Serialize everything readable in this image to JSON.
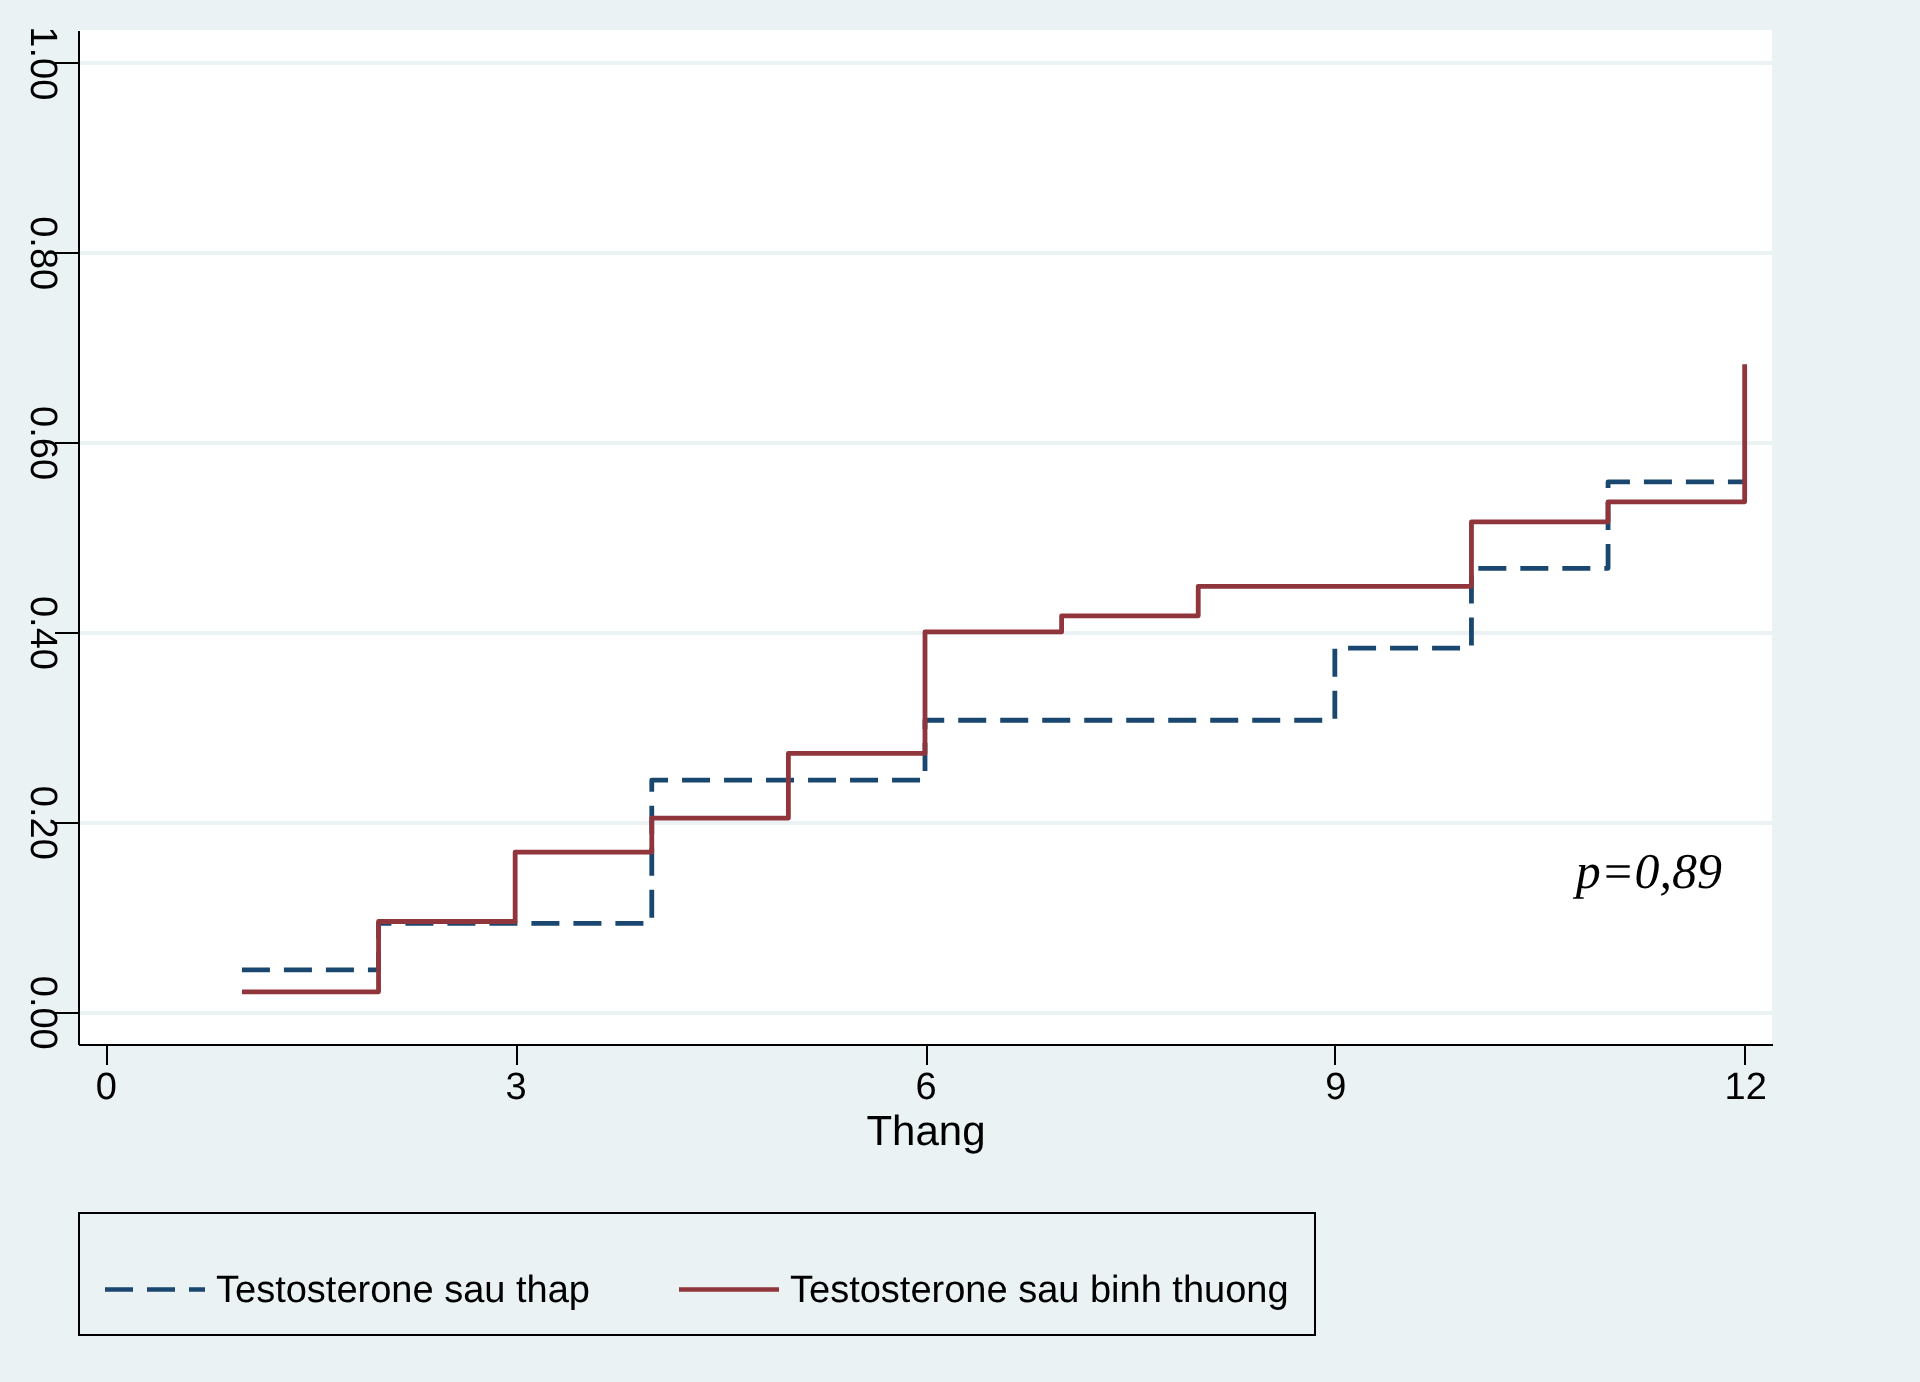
{
  "chart_data": {
    "type": "step",
    "xlabel": "Thang",
    "xlim": [
      -0.2,
      12.2
    ],
    "xticks": [
      0,
      3,
      6,
      9,
      12
    ],
    "ylim": [
      -0.034,
      1.034
    ],
    "yticks": [
      {
        "value": 0,
        "label": "0.00"
      },
      {
        "value": 0.2,
        "label": "0.20"
      },
      {
        "value": 0.4,
        "label": "0.40"
      },
      {
        "value": 0.6,
        "label": "0.60"
      },
      {
        "value": 0.8,
        "label": "0.80"
      },
      {
        "value": 1,
        "label": "1.00"
      }
    ],
    "grid": "y",
    "legend": "bottom",
    "annotations": [
      "p=0,89"
    ],
    "series": [
      {
        "name": "Testosterone sau thap",
        "color": "#1a476f",
        "line_style": "dashed",
        "x": [
          1,
          2,
          4,
          6,
          9,
          10,
          11,
          12
        ],
        "values": [
          0.044,
          0.093,
          0.244,
          0.307,
          0.383,
          0.467,
          0.558,
          0.558
        ]
      },
      {
        "name": "Testosterone sau binh thuong",
        "color": "#90353b",
        "line_style": "solid",
        "x": [
          1,
          2,
          3,
          4,
          5,
          6,
          7,
          8,
          10,
          11,
          12
        ],
        "values": [
          0.021,
          0.095,
          0.168,
          0.204,
          0.272,
          0.4,
          0.417,
          0.448,
          0.516,
          0.537,
          0.682
        ]
      }
    ]
  }
}
